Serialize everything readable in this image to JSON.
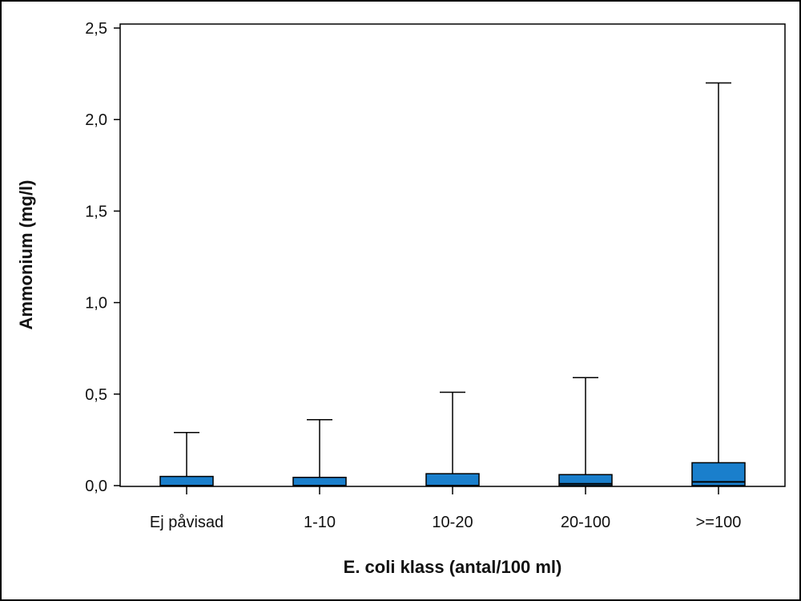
{
  "chart_data": {
    "type": "box",
    "xlabel": "E. coli klass (antal/100 ml)",
    "ylabel": "Ammonium (mg/l)",
    "ylim": [
      0,
      2.5
    ],
    "yticks": [
      0,
      0.5,
      1.0,
      1.5,
      2.0,
      2.5
    ],
    "ytick_labels": [
      "0,0",
      "0,5",
      "1,0",
      "1,5",
      "2,0",
      "2,5"
    ],
    "categories": [
      "Ej påvisad",
      "1-10",
      "10-20",
      "20-100",
      ">=100"
    ],
    "boxes": [
      {
        "category": "Ej påvisad",
        "min": 0,
        "q1": 0,
        "median": 0,
        "q3": 0.05,
        "max": 0.29
      },
      {
        "category": "1-10",
        "min": 0,
        "q1": 0,
        "median": 0,
        "q3": 0.045,
        "max": 0.36
      },
      {
        "category": "10-20",
        "min": 0,
        "q1": 0,
        "median": 0,
        "q3": 0.065,
        "max": 0.51
      },
      {
        "category": "20-100",
        "min": 0,
        "q1": 0,
        "median": 0.01,
        "q3": 0.06,
        "max": 0.59
      },
      {
        "category": ">=100",
        "min": 0,
        "q1": 0,
        "median": 0.02,
        "q3": 0.125,
        "max": 2.2
      }
    ],
    "box_color": "#1a7fcc",
    "grid": false,
    "legend": "none"
  }
}
